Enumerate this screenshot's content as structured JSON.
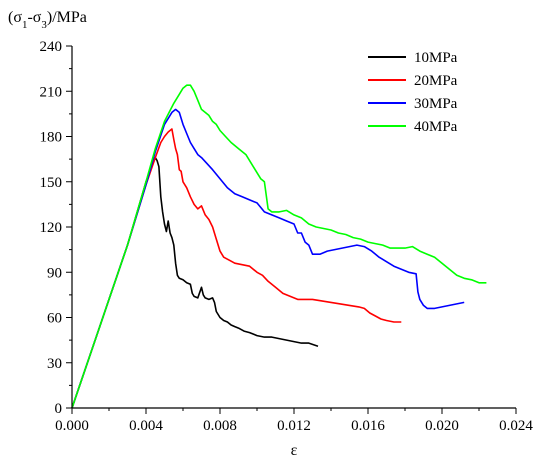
{
  "chart_data": {
    "type": "line",
    "title": "",
    "ylabel_prefix": "(σ",
    "ylabel_sub1": "1",
    "ylabel_mid": "-σ",
    "ylabel_sub2": "3",
    "ylabel_suffix": ")/MPa",
    "xlabel": "ε",
    "xlim": [
      0,
      0.024
    ],
    "ylim": [
      0,
      240
    ],
    "xticks": [
      "0.000",
      "0.004",
      "0.008",
      "0.012",
      "0.016",
      "0.020",
      "0.024"
    ],
    "xtick_values": [
      0,
      0.004,
      0.008,
      0.012,
      0.016,
      0.02,
      0.024
    ],
    "yticks": [
      "0",
      "30",
      "60",
      "90",
      "120",
      "150",
      "180",
      "210",
      "240"
    ],
    "ytick_values": [
      0,
      30,
      60,
      90,
      120,
      150,
      180,
      210,
      240
    ],
    "grid": false,
    "legend_position": "top-right",
    "series": [
      {
        "name": "10MPa",
        "color": "#000000",
        "points": [
          [
            0,
            0
          ],
          [
            0.001,
            36
          ],
          [
            0.002,
            72
          ],
          [
            0.003,
            108
          ],
          [
            0.004,
            150
          ],
          [
            0.0043,
            160
          ],
          [
            0.0045,
            166
          ],
          [
            0.0046,
            164
          ],
          [
            0.0047,
            160
          ],
          [
            0.0048,
            140
          ],
          [
            0.0049,
            130
          ],
          [
            0.005,
            122
          ],
          [
            0.0051,
            117
          ],
          [
            0.0052,
            124
          ],
          [
            0.0053,
            116
          ],
          [
            0.0054,
            113
          ],
          [
            0.0055,
            108
          ],
          [
            0.0056,
            96
          ],
          [
            0.0057,
            88
          ],
          [
            0.0058,
            86
          ],
          [
            0.006,
            85
          ],
          [
            0.0062,
            83
          ],
          [
            0.0064,
            82
          ],
          [
            0.0065,
            76
          ],
          [
            0.0066,
            74
          ],
          [
            0.0068,
            73
          ],
          [
            0.007,
            80
          ],
          [
            0.0071,
            75
          ],
          [
            0.0072,
            73
          ],
          [
            0.0074,
            72
          ],
          [
            0.0076,
            73
          ],
          [
            0.0077,
            70
          ],
          [
            0.0078,
            64
          ],
          [
            0.008,
            60
          ],
          [
            0.0082,
            58
          ],
          [
            0.0084,
            57
          ],
          [
            0.0086,
            55
          ],
          [
            0.0088,
            54
          ],
          [
            0.009,
            53
          ],
          [
            0.0093,
            51
          ],
          [
            0.0096,
            50
          ],
          [
            0.01,
            48
          ],
          [
            0.0104,
            47
          ],
          [
            0.0108,
            47
          ],
          [
            0.0112,
            46
          ],
          [
            0.0116,
            45
          ],
          [
            0.012,
            44
          ],
          [
            0.0124,
            43
          ],
          [
            0.0128,
            43
          ],
          [
            0.0133,
            41
          ]
        ]
      },
      {
        "name": "20MPa",
        "color": "#ff0000",
        "points": [
          [
            0,
            0
          ],
          [
            0.001,
            36
          ],
          [
            0.002,
            72
          ],
          [
            0.003,
            108
          ],
          [
            0.004,
            148
          ],
          [
            0.0045,
            166
          ],
          [
            0.0048,
            176
          ],
          [
            0.005,
            180
          ],
          [
            0.0052,
            183
          ],
          [
            0.0054,
            185
          ],
          [
            0.0055,
            178
          ],
          [
            0.0056,
            172
          ],
          [
            0.0057,
            168
          ],
          [
            0.0058,
            158
          ],
          [
            0.0059,
            157
          ],
          [
            0.006,
            150
          ],
          [
            0.0062,
            146
          ],
          [
            0.0064,
            140
          ],
          [
            0.0066,
            135
          ],
          [
            0.0068,
            132
          ],
          [
            0.007,
            134
          ],
          [
            0.0072,
            128
          ],
          [
            0.0074,
            125
          ],
          [
            0.0076,
            120
          ],
          [
            0.0078,
            112
          ],
          [
            0.008,
            104
          ],
          [
            0.0082,
            100
          ],
          [
            0.0085,
            98
          ],
          [
            0.0088,
            96
          ],
          [
            0.0092,
            95
          ],
          [
            0.0096,
            94
          ],
          [
            0.01,
            90
          ],
          [
            0.0103,
            88
          ],
          [
            0.0106,
            84
          ],
          [
            0.011,
            80
          ],
          [
            0.0114,
            76
          ],
          [
            0.0118,
            74
          ],
          [
            0.0122,
            72
          ],
          [
            0.0126,
            72
          ],
          [
            0.013,
            72
          ],
          [
            0.0135,
            71
          ],
          [
            0.014,
            70
          ],
          [
            0.0145,
            69
          ],
          [
            0.015,
            68
          ],
          [
            0.0155,
            67
          ],
          [
            0.0158,
            66
          ],
          [
            0.0161,
            63
          ],
          [
            0.0164,
            61
          ],
          [
            0.0167,
            59
          ],
          [
            0.017,
            58
          ],
          [
            0.0174,
            57
          ],
          [
            0.0178,
            57
          ]
        ]
      },
      {
        "name": "30MPa",
        "color": "#0000ff",
        "points": [
          [
            0,
            0
          ],
          [
            0.001,
            36
          ],
          [
            0.002,
            72
          ],
          [
            0.003,
            108
          ],
          [
            0.004,
            148
          ],
          [
            0.0045,
            170
          ],
          [
            0.005,
            188
          ],
          [
            0.0054,
            196
          ],
          [
            0.0056,
            198
          ],
          [
            0.0058,
            196
          ],
          [
            0.006,
            188
          ],
          [
            0.0062,
            182
          ],
          [
            0.0064,
            176
          ],
          [
            0.0066,
            172
          ],
          [
            0.0068,
            168
          ],
          [
            0.007,
            166
          ],
          [
            0.0073,
            162
          ],
          [
            0.0076,
            158
          ],
          [
            0.008,
            152
          ],
          [
            0.0084,
            146
          ],
          [
            0.0088,
            142
          ],
          [
            0.0092,
            140
          ],
          [
            0.0096,
            138
          ],
          [
            0.01,
            136
          ],
          [
            0.0104,
            130
          ],
          [
            0.0108,
            128
          ],
          [
            0.0112,
            126
          ],
          [
            0.0116,
            124
          ],
          [
            0.012,
            122
          ],
          [
            0.0122,
            116
          ],
          [
            0.0124,
            116
          ],
          [
            0.0126,
            110
          ],
          [
            0.0128,
            108
          ],
          [
            0.013,
            102
          ],
          [
            0.0134,
            102
          ],
          [
            0.0138,
            104
          ],
          [
            0.0142,
            105
          ],
          [
            0.0146,
            106
          ],
          [
            0.015,
            107
          ],
          [
            0.0154,
            108
          ],
          [
            0.0158,
            107
          ],
          [
            0.0162,
            104
          ],
          [
            0.0166,
            100
          ],
          [
            0.017,
            97
          ],
          [
            0.0174,
            94
          ],
          [
            0.0178,
            92
          ],
          [
            0.0182,
            90
          ],
          [
            0.0186,
            89
          ],
          [
            0.0187,
            77
          ],
          [
            0.0188,
            72
          ],
          [
            0.019,
            68
          ],
          [
            0.0192,
            66
          ],
          [
            0.0196,
            66
          ],
          [
            0.02,
            67
          ],
          [
            0.0204,
            68
          ],
          [
            0.0208,
            69
          ],
          [
            0.0212,
            70
          ]
        ]
      },
      {
        "name": "40MPa",
        "color": "#00ff00",
        "points": [
          [
            0,
            0
          ],
          [
            0.001,
            36
          ],
          [
            0.002,
            72
          ],
          [
            0.003,
            108
          ],
          [
            0.004,
            150
          ],
          [
            0.0045,
            172
          ],
          [
            0.005,
            190
          ],
          [
            0.0055,
            202
          ],
          [
            0.0058,
            208
          ],
          [
            0.006,
            212
          ],
          [
            0.0062,
            214
          ],
          [
            0.0064,
            214
          ],
          [
            0.0066,
            210
          ],
          [
            0.0068,
            204
          ],
          [
            0.007,
            198
          ],
          [
            0.0072,
            196
          ],
          [
            0.0074,
            194
          ],
          [
            0.0076,
            190
          ],
          [
            0.0078,
            188
          ],
          [
            0.008,
            184
          ],
          [
            0.0083,
            180
          ],
          [
            0.0086,
            176
          ],
          [
            0.009,
            172
          ],
          [
            0.0094,
            168
          ],
          [
            0.0098,
            160
          ],
          [
            0.0102,
            152
          ],
          [
            0.0104,
            150
          ],
          [
            0.0106,
            132
          ],
          [
            0.0108,
            130
          ],
          [
            0.0112,
            130
          ],
          [
            0.0116,
            131
          ],
          [
            0.012,
            128
          ],
          [
            0.0124,
            126
          ],
          [
            0.0128,
            122
          ],
          [
            0.0132,
            120
          ],
          [
            0.0136,
            119
          ],
          [
            0.014,
            118
          ],
          [
            0.0144,
            116
          ],
          [
            0.0148,
            115
          ],
          [
            0.0152,
            113
          ],
          [
            0.0156,
            112
          ],
          [
            0.016,
            110
          ],
          [
            0.0164,
            109
          ],
          [
            0.0168,
            108
          ],
          [
            0.0172,
            106
          ],
          [
            0.0176,
            106
          ],
          [
            0.018,
            106
          ],
          [
            0.0184,
            107
          ],
          [
            0.0188,
            104
          ],
          [
            0.0192,
            102
          ],
          [
            0.0196,
            100
          ],
          [
            0.02,
            96
          ],
          [
            0.0204,
            92
          ],
          [
            0.0208,
            88
          ],
          [
            0.0212,
            86
          ],
          [
            0.0216,
            85
          ],
          [
            0.022,
            83
          ],
          [
            0.0224,
            83
          ]
        ]
      }
    ]
  }
}
